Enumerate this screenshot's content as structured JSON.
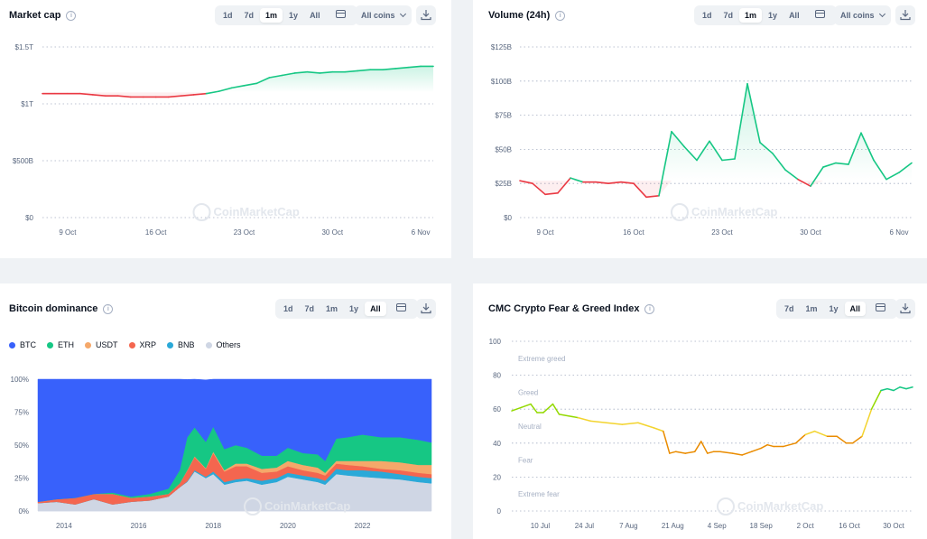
{
  "panels": {
    "market_cap": {
      "title": "Market cap",
      "ranges": [
        "1d",
        "7d",
        "1m",
        "1y",
        "All"
      ],
      "active_range": "1m",
      "dropdown": "All coins"
    },
    "volume": {
      "title": "Volume (24h)",
      "ranges": [
        "1d",
        "7d",
        "1m",
        "1y",
        "All"
      ],
      "active_range": "1m",
      "dropdown": "All coins"
    },
    "dominance": {
      "title": "Bitcoin dominance",
      "ranges": [
        "1d",
        "7d",
        "1m",
        "1y",
        "All"
      ],
      "active_range": "All",
      "legend": [
        {
          "label": "BTC",
          "color": "#3861fb"
        },
        {
          "label": "ETH",
          "color": "#16c784"
        },
        {
          "label": "USDT",
          "color": "#f5a86a"
        },
        {
          "label": "XRP",
          "color": "#f4664f"
        },
        {
          "label": "BNB",
          "color": "#2aa9d8"
        },
        {
          "label": "Others",
          "color": "#cfd6e4"
        }
      ]
    },
    "fear_greed": {
      "title": "CMC Crypto Fear & Greed Index",
      "ranges": [
        "7d",
        "1m",
        "1y",
        "All"
      ],
      "active_range": "All",
      "zones": [
        "Extreme greed",
        "Greed",
        "Neutral",
        "Fear",
        "Extreme fear"
      ]
    }
  },
  "watermark": "CoinMarketCap",
  "colors": {
    "up": "#16c784",
    "down": "#ea3943",
    "btc": "#3861fb"
  },
  "chart_data": [
    {
      "id": "market_cap",
      "type": "area",
      "ylim": [
        0,
        1.5
      ],
      "yticks": [
        0,
        0.5,
        1,
        1.5
      ],
      "ytick_labels": [
        "$0",
        "$500B",
        "$1T",
        "$1.5T"
      ],
      "xlim": [
        0,
        31
      ],
      "xticks": [
        2,
        9,
        16,
        23,
        30
      ],
      "xtick_labels": [
        "9 Oct",
        "16 Oct",
        "23 Oct",
        "30 Oct",
        "6 Nov"
      ],
      "baseline": 1.1,
      "x": [
        0,
        1,
        2,
        3,
        4,
        5,
        6,
        7,
        8,
        9,
        10,
        11,
        12,
        13,
        14,
        15,
        16,
        17,
        18,
        19,
        20,
        21,
        22,
        23,
        24,
        25,
        26,
        27,
        28,
        29,
        30,
        31
      ],
      "y": [
        1.09,
        1.09,
        1.09,
        1.09,
        1.08,
        1.07,
        1.07,
        1.06,
        1.06,
        1.06,
        1.06,
        1.07,
        1.08,
        1.09,
        1.11,
        1.14,
        1.16,
        1.18,
        1.23,
        1.25,
        1.27,
        1.28,
        1.27,
        1.28,
        1.28,
        1.29,
        1.3,
        1.3,
        1.31,
        1.32,
        1.33,
        1.33
      ]
    },
    {
      "id": "volume",
      "type": "area",
      "ylim": [
        0,
        125
      ],
      "yticks": [
        0,
        25,
        50,
        75,
        100,
        125
      ],
      "ytick_labels": [
        "$0",
        "$25B",
        "$50B",
        "$75B",
        "$100B",
        "$125B"
      ],
      "xlim": [
        0,
        31
      ],
      "xticks": [
        2,
        9,
        16,
        23,
        30
      ],
      "xtick_labels": [
        "9 Oct",
        "16 Oct",
        "23 Oct",
        "30 Oct",
        "6 Nov"
      ],
      "baseline": 27,
      "x": [
        0,
        1,
        2,
        3,
        4,
        5,
        6,
        7,
        8,
        9,
        10,
        11,
        12,
        13,
        14,
        15,
        16,
        17,
        18,
        19,
        20,
        21,
        22,
        23,
        24,
        25,
        26,
        27,
        28,
        29,
        30,
        31
      ],
      "y": [
        27,
        25,
        17,
        18,
        29,
        26,
        26,
        25,
        26,
        25,
        15,
        16,
        63,
        52,
        42,
        56,
        42,
        43,
        98,
        55,
        47,
        35,
        28,
        23,
        37,
        40,
        39,
        62,
        42,
        28,
        33,
        40
      ]
    },
    {
      "id": "dominance",
      "type": "area",
      "stacked": true,
      "percent": true,
      "ylim": [
        0,
        100
      ],
      "yticks": [
        0,
        25,
        50,
        75,
        100
      ],
      "ytick_labels": [
        "0%",
        "25%",
        "50%",
        "75%",
        "100%"
      ],
      "xlim": [
        2013.3,
        2023.85
      ],
      "xticks": [
        2014,
        2016,
        2018,
        2020,
        2022
      ],
      "xtick_labels": [
        "2014",
        "2016",
        "2018",
        "2020",
        "2022"
      ],
      "x": [
        2013.3,
        2013.8,
        2014.3,
        2014.8,
        2015.3,
        2015.8,
        2016.3,
        2016.8,
        2017.1,
        2017.3,
        2017.5,
        2017.8,
        2018.0,
        2018.3,
        2018.6,
        2018.9,
        2019.3,
        2019.7,
        2020.0,
        2020.4,
        2020.8,
        2021.0,
        2021.3,
        2021.6,
        2022.0,
        2022.5,
        2023.0,
        2023.5,
        2023.85
      ],
      "series": [
        {
          "name": "Others",
          "values": [
            6,
            7,
            5,
            9,
            5,
            7,
            8,
            11,
            18,
            22,
            30,
            25,
            28,
            20,
            22,
            23,
            20,
            22,
            26,
            24,
            22,
            20,
            28,
            27,
            26,
            25,
            24,
            22,
            21
          ]
        },
        {
          "name": "BNB",
          "values": [
            0,
            0,
            0,
            0,
            0,
            0,
            0,
            0,
            0,
            0.5,
            1,
            1,
            2,
            2,
            2,
            2,
            3,
            3,
            3,
            3,
            3,
            3,
            4,
            4,
            5,
            5,
            4,
            4,
            4
          ]
        },
        {
          "name": "XRP",
          "values": [
            1,
            2,
            5,
            4,
            8,
            3,
            3,
            2,
            3,
            8,
            10,
            6,
            14,
            8,
            10,
            9,
            6,
            5,
            5,
            4,
            4,
            4,
            4,
            4,
            3,
            2,
            3,
            3,
            3
          ]
        },
        {
          "name": "USDT",
          "values": [
            0,
            0,
            0,
            0,
            0,
            0,
            0,
            0,
            0,
            0.3,
            0.5,
            0.5,
            1,
            1,
            2,
            2,
            3,
            3,
            4,
            4,
            4,
            2,
            2,
            3,
            4,
            6,
            6,
            6,
            7
          ]
        },
        {
          "name": "ETH",
          "values": [
            0,
            0,
            0,
            0,
            1,
            1,
            2,
            4,
            10,
            25,
            22,
            20,
            19,
            16,
            14,
            12,
            10,
            9,
            10,
            9,
            10,
            9,
            17,
            18,
            20,
            18,
            19,
            19,
            17
          ]
        },
        {
          "name": "BTC",
          "values": [
            93,
            91,
            90,
            87,
            86,
            89,
            87,
            83,
            69,
            44,
            37,
            47,
            36,
            53,
            50,
            52,
            58,
            58,
            52,
            56,
            57,
            62,
            45,
            44,
            42,
            44,
            44,
            46,
            48
          ]
        }
      ]
    },
    {
      "id": "fear_greed",
      "type": "line",
      "ylim": [
        0,
        100
      ],
      "yticks": [
        0,
        20,
        40,
        60,
        80,
        100
      ],
      "ytick_labels": [
        "0",
        "20",
        "40",
        "60",
        "80",
        "100"
      ],
      "xlim": [
        0,
        127
      ],
      "xticks": [
        9,
        23,
        37,
        51,
        65,
        79,
        93,
        107,
        121
      ],
      "xtick_labels": [
        "10 Jul",
        "24 Jul",
        "7 Aug",
        "21 Aug",
        "4 Sep",
        "18 Sep",
        "2 Oct",
        "16 Oct",
        "30 Oct"
      ],
      "x": [
        0,
        3,
        6,
        8,
        10,
        13,
        15,
        18,
        21,
        25,
        30,
        35,
        40,
        45,
        48,
        50,
        52,
        55,
        58,
        60,
        62,
        64,
        66,
        70,
        73,
        76,
        79,
        81,
        83,
        86,
        90,
        93,
        96,
        100,
        103,
        106,
        108,
        111,
        114,
        117,
        119,
        121,
        123,
        125,
        127
      ],
      "y": [
        59,
        61,
        63,
        58,
        58,
        63,
        57,
        56,
        55,
        53,
        52,
        51,
        52,
        49,
        47,
        34,
        35,
        34,
        35,
        41,
        34,
        35,
        35,
        34,
        33,
        35,
        37,
        39,
        38,
        38,
        40,
        45,
        47,
        44,
        44,
        40,
        40,
        44,
        60,
        71,
        72,
        71,
        73,
        72,
        73
      ]
    }
  ]
}
